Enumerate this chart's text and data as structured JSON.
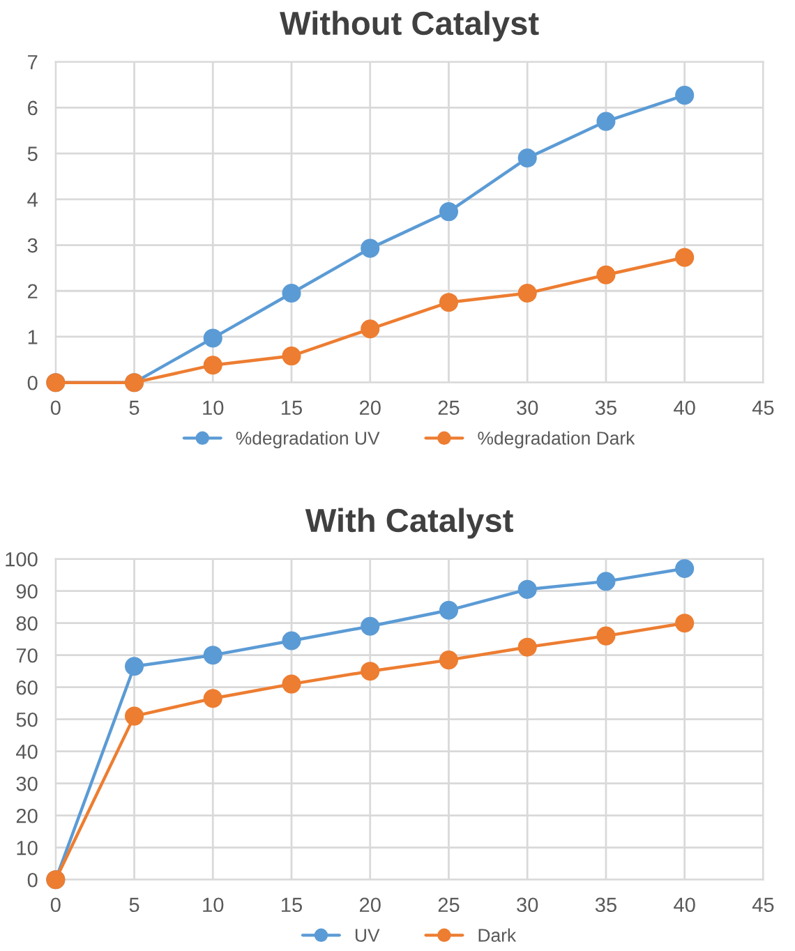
{
  "chart_data": [
    {
      "type": "line",
      "title": "Without Catalyst",
      "x": [
        0,
        5,
        10,
        15,
        20,
        25,
        30,
        35,
        40
      ],
      "series": [
        {
          "name": "%degradation UV",
          "color": "#5b9bd5",
          "values": [
            0,
            0,
            0.97,
            1.95,
            2.93,
            3.73,
            4.9,
            5.7,
            6.27
          ]
        },
        {
          "name": "%degradation Dark",
          "color": "#ed7d31",
          "values": [
            0,
            0,
            0.38,
            0.58,
            1.17,
            1.75,
            1.95,
            2.35,
            2.73
          ]
        }
      ],
      "xlim": [
        0,
        45
      ],
      "xticks": [
        0,
        5,
        10,
        15,
        20,
        25,
        30,
        35,
        40,
        45
      ],
      "ylim": [
        0,
        7
      ],
      "yticks": [
        0,
        1,
        2,
        3,
        4,
        5,
        6,
        7
      ],
      "grid": true,
      "legend": "bottom",
      "marker": "circle",
      "line_style": "solid"
    },
    {
      "type": "line",
      "title": "With Catalyst",
      "x": [
        0,
        5,
        10,
        15,
        20,
        25,
        30,
        35,
        40
      ],
      "series": [
        {
          "name": "UV",
          "color": "#5b9bd5",
          "values": [
            0,
            66.5,
            70,
            74.5,
            79,
            84,
            90.5,
            93,
            97
          ]
        },
        {
          "name": "Dark",
          "color": "#ed7d31",
          "values": [
            0,
            51,
            56.5,
            61,
            65,
            68.5,
            72.5,
            76,
            80
          ]
        }
      ],
      "xlim": [
        0,
        45
      ],
      "xticks": [
        0,
        5,
        10,
        15,
        20,
        25,
        30,
        35,
        40,
        45
      ],
      "ylim": [
        0,
        100
      ],
      "yticks": [
        0,
        10,
        20,
        30,
        40,
        50,
        60,
        70,
        80,
        90,
        100
      ],
      "grid": true,
      "legend": "bottom",
      "marker": "circle",
      "line_style": "solid"
    }
  ]
}
